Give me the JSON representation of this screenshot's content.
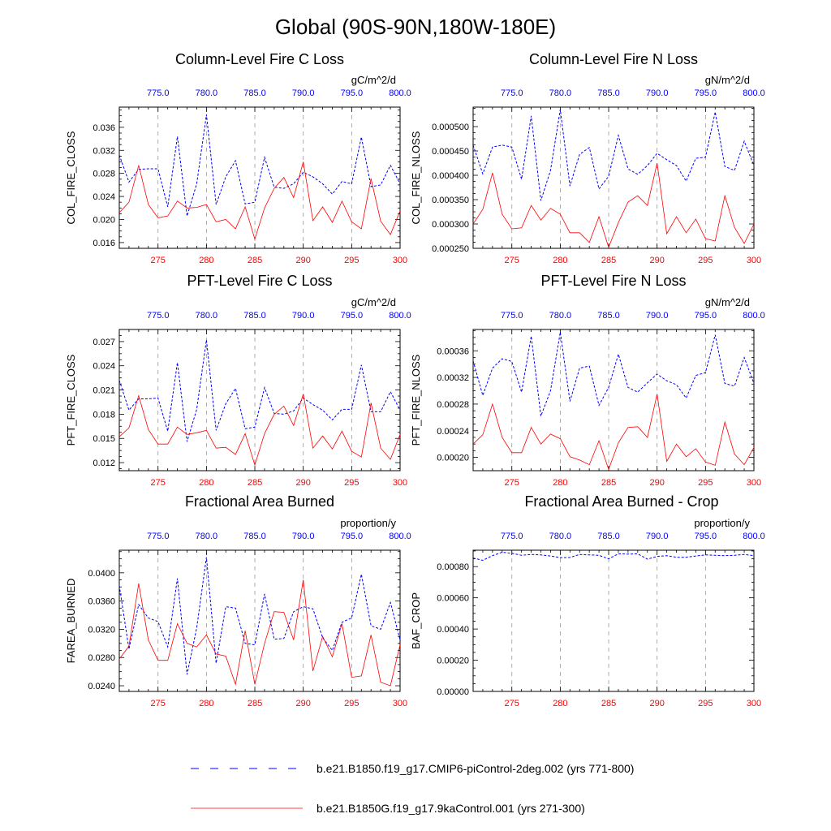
{
  "figure_title": "Global (90S-90N,180W-180E)",
  "colors": {
    "ctrl": "#0000ff",
    "case": "#ff0000",
    "frame": "#000000",
    "grid": "#999999"
  },
  "legend": {
    "ctrl_label": "b.e21.B1850.f19_g17.CMIP6-piControl-2deg.002 (yrs 771-800)",
    "case_label": "b.e21.B1850G.f19_g17.9kaControl.001 (yrs 271-300)"
  },
  "chart_data": [
    {
      "type": "line",
      "title": "Column-Level Fire C Loss",
      "units": "gC/m^2/d",
      "ylabel": "COL_FIRE_CLOSS",
      "ylim": [
        0.015,
        0.0395
      ],
      "yticks": [
        0.016,
        0.02,
        0.024,
        0.028,
        0.032,
        0.036
      ],
      "ytick_labels": [
        "0.016",
        "0.020",
        "0.024",
        "0.028",
        "0.032",
        "0.036"
      ],
      "x_bottom_ticks": [
        "275",
        "280",
        "285",
        "290",
        "295",
        "300"
      ],
      "x_top_ticks": [
        "775.0",
        "780.0",
        "785.0",
        "790.0",
        "795.0",
        "800.0"
      ],
      "series": [
        {
          "name": "b.e21.B1850.f19_g17.CMIP6-piControl-2deg.002 (yrs 771-800)",
          "x": [
            771,
            772,
            773,
            774,
            775,
            776,
            777,
            778,
            779,
            780,
            781,
            782,
            783,
            784,
            785,
            786,
            787,
            788,
            789,
            790,
            791,
            792,
            793,
            794,
            795,
            796,
            797,
            798,
            799,
            800
          ],
          "values": [
            0.0312,
            0.0265,
            0.0287,
            0.0288,
            0.0288,
            0.0222,
            0.0344,
            0.0206,
            0.0262,
            0.0382,
            0.0226,
            0.0274,
            0.0302,
            0.0227,
            0.023,
            0.0308,
            0.0256,
            0.0254,
            0.0262,
            0.0282,
            0.0274,
            0.0262,
            0.0244,
            0.0266,
            0.0262,
            0.0343,
            0.0257,
            0.026,
            0.0294,
            0.0262
          ]
        },
        {
          "name": "b.e21.B1850G.f19_g17.9kaControl.001 (yrs 271-300)",
          "x": [
            271,
            272,
            273,
            274,
            275,
            276,
            277,
            278,
            279,
            280,
            281,
            282,
            283,
            284,
            285,
            286,
            287,
            288,
            289,
            290,
            291,
            292,
            293,
            294,
            295,
            296,
            297,
            298,
            299,
            300
          ],
          "values": [
            0.0212,
            0.023,
            0.0294,
            0.0226,
            0.0203,
            0.0206,
            0.0232,
            0.022,
            0.0221,
            0.0226,
            0.0196,
            0.02,
            0.0184,
            0.0222,
            0.0166,
            0.022,
            0.0254,
            0.0273,
            0.0238,
            0.03,
            0.0198,
            0.0222,
            0.0195,
            0.0232,
            0.0196,
            0.0184,
            0.0271,
            0.0197,
            0.0174,
            0.0215
          ]
        }
      ]
    },
    {
      "type": "line",
      "title": "Column-Level Fire N Loss",
      "units": "gN/m^2/d",
      "ylabel": "COL_FIRE_NLOSS",
      "ylim": [
        0.00025,
        0.00054
      ],
      "yticks": [
        0.00025,
        0.0003,
        0.00035,
        0.0004,
        0.00045,
        0.0005
      ],
      "ytick_labels": [
        "0.000250",
        "0.000300",
        "0.000350",
        "0.000400",
        "0.000450",
        "0.000500"
      ],
      "x_bottom_ticks": [
        "275",
        "280",
        "285",
        "290",
        "295",
        "300"
      ],
      "x_top_ticks": [
        "775.0",
        "780.0",
        "785.0",
        "790.0",
        "795.0",
        "800.0"
      ],
      "series": [
        {
          "name": "b.e21.B1850.f19_g17.CMIP6-piControl-2deg.002 (yrs 771-800)",
          "x": [
            771,
            772,
            773,
            774,
            775,
            776,
            777,
            778,
            779,
            780,
            781,
            782,
            783,
            784,
            785,
            786,
            787,
            788,
            789,
            790,
            791,
            792,
            793,
            794,
            795,
            796,
            797,
            798,
            799,
            800
          ],
          "values": [
            0.000462,
            0.000403,
            0.000458,
            0.000462,
            0.000458,
            0.000392,
            0.000522,
            0.000348,
            0.00041,
            0.000535,
            0.000378,
            0.000443,
            0.000457,
            0.000372,
            0.000398,
            0.000482,
            0.000413,
            0.000402,
            0.00042,
            0.000445,
            0.000432,
            0.00042,
            0.000388,
            0.000435,
            0.000437,
            0.00053,
            0.000418,
            0.00041,
            0.00047,
            0.00042
          ]
        },
        {
          "name": "b.e21.B1850G.f19_g17.9kaControl.001 (yrs 271-300)",
          "x": [
            271,
            272,
            273,
            274,
            275,
            276,
            277,
            278,
            279,
            280,
            281,
            282,
            283,
            284,
            285,
            286,
            287,
            288,
            289,
            290,
            291,
            292,
            293,
            294,
            295,
            296,
            297,
            298,
            299,
            300
          ],
          "values": [
            0.0003,
            0.00033,
            0.000405,
            0.00032,
            0.00029,
            0.000292,
            0.000338,
            0.000308,
            0.000332,
            0.00032,
            0.000282,
            0.000282,
            0.000262,
            0.000315,
            0.000252,
            0.000303,
            0.000345,
            0.000358,
            0.000338,
            0.000425,
            0.00028,
            0.000315,
            0.000282,
            0.00031,
            0.00027,
            0.000265,
            0.000358,
            0.000293,
            0.00026,
            0.0003
          ]
        }
      ]
    },
    {
      "type": "line",
      "title": "PFT-Level Fire C Loss",
      "units": "gC/m^2/d",
      "ylabel": "PFT_FIRE_CLOSS",
      "ylim": [
        0.011,
        0.0285
      ],
      "yticks": [
        0.012,
        0.015,
        0.018,
        0.021,
        0.024,
        0.027
      ],
      "ytick_labels": [
        "0.012",
        "0.015",
        "0.018",
        "0.021",
        "0.024",
        "0.027"
      ],
      "x_bottom_ticks": [
        "275",
        "280",
        "285",
        "290",
        "295",
        "300"
      ],
      "x_top_ticks": [
        "775.0",
        "780.0",
        "785.0",
        "790.0",
        "795.0",
        "800.0"
      ],
      "series": [
        {
          "name": "b.e21.B1850.f19_g17.CMIP6-piControl-2deg.002 (yrs 771-800)",
          "x": [
            771,
            772,
            773,
            774,
            775,
            776,
            777,
            778,
            779,
            780,
            781,
            782,
            783,
            784,
            785,
            786,
            787,
            788,
            789,
            790,
            791,
            792,
            793,
            794,
            795,
            796,
            797,
            798,
            799,
            800
          ],
          "values": [
            0.0222,
            0.0185,
            0.0199,
            0.0199,
            0.02,
            0.0159,
            0.0244,
            0.0146,
            0.0186,
            0.0272,
            0.016,
            0.0193,
            0.0212,
            0.0162,
            0.0164,
            0.0213,
            0.0181,
            0.018,
            0.0184,
            0.02,
            0.0192,
            0.0185,
            0.0173,
            0.0186,
            0.0186,
            0.0241,
            0.0183,
            0.0183,
            0.0208,
            0.0185
          ]
        },
        {
          "name": "b.e21.B1850G.f19_g17.9kaControl.001 (yrs 271-300)",
          "x": [
            271,
            272,
            273,
            274,
            275,
            276,
            277,
            278,
            279,
            280,
            281,
            282,
            283,
            284,
            285,
            286,
            287,
            288,
            289,
            290,
            291,
            292,
            293,
            294,
            295,
            296,
            297,
            298,
            299,
            300
          ],
          "values": [
            0.0152,
            0.0163,
            0.0203,
            0.0161,
            0.0143,
            0.0143,
            0.0164,
            0.0155,
            0.0157,
            0.016,
            0.0138,
            0.0139,
            0.013,
            0.0156,
            0.0117,
            0.0156,
            0.018,
            0.019,
            0.0166,
            0.0205,
            0.0138,
            0.0153,
            0.0137,
            0.0159,
            0.0134,
            0.0127,
            0.0194,
            0.0138,
            0.0124,
            0.0155
          ]
        }
      ]
    },
    {
      "type": "line",
      "title": "PFT-Level Fire N Loss",
      "units": "gN/m^2/d",
      "ylabel": "PFT_FIRE_NLOSS",
      "ylim": [
        0.00018,
        0.000392
      ],
      "yticks": [
        0.0002,
        0.00024,
        0.00028,
        0.00032,
        0.00036
      ],
      "ytick_labels": [
        "0.00020",
        "0.00024",
        "0.00028",
        "0.00032",
        "0.00036"
      ],
      "x_bottom_ticks": [
        "275",
        "280",
        "285",
        "290",
        "295",
        "300"
      ],
      "x_top_ticks": [
        "775.0",
        "780.0",
        "785.0",
        "790.0",
        "795.0",
        "800.0"
      ],
      "series": [
        {
          "name": "b.e21.B1850.f19_g17.CMIP6-piControl-2deg.002 (yrs 771-800)",
          "x": [
            771,
            772,
            773,
            774,
            775,
            776,
            777,
            778,
            779,
            780,
            781,
            782,
            783,
            784,
            785,
            786,
            787,
            788,
            789,
            790,
            791,
            792,
            793,
            794,
            795,
            796,
            797,
            798,
            799,
            800
          ],
          "values": [
            0.000345,
            0.000293,
            0.000334,
            0.000348,
            0.000344,
            0.000298,
            0.000382,
            0.000262,
            0.0003,
            0.000388,
            0.000284,
            0.000334,
            0.000337,
            0.000278,
            0.000305,
            0.000355,
            0.000305,
            0.000298,
            0.000312,
            0.000325,
            0.000315,
            0.000309,
            0.000289,
            0.000323,
            0.000327,
            0.000384,
            0.000311,
            0.000307,
            0.00035,
            0.000311
          ]
        },
        {
          "name": "b.e21.B1850G.f19_g17.9kaControl.001 (yrs 271-300)",
          "x": [
            271,
            272,
            273,
            274,
            275,
            276,
            277,
            278,
            279,
            280,
            281,
            282,
            283,
            284,
            285,
            286,
            287,
            288,
            289,
            290,
            291,
            292,
            293,
            294,
            295,
            296,
            297,
            298,
            299,
            300
          ],
          "values": [
            0.00022,
            0.000234,
            0.00028,
            0.00023,
            0.000207,
            0.000207,
            0.000245,
            0.00022,
            0.000235,
            0.000228,
            0.000201,
            0.000196,
            0.000189,
            0.000225,
            0.000182,
            0.000222,
            0.000245,
            0.000246,
            0.00023,
            0.000295,
            0.000194,
            0.00022,
            0.000201,
            0.000213,
            0.000193,
            0.000188,
            0.000253,
            0.000205,
            0.000189,
            0.000215
          ]
        }
      ]
    },
    {
      "type": "line",
      "title": "Fractional Area Burned",
      "units": "proportion/y",
      "ylabel": "FAREA_BURNED",
      "ylim": [
        0.0232,
        0.0432
      ],
      "yticks": [
        0.024,
        0.028,
        0.032,
        0.036,
        0.04
      ],
      "ytick_labels": [
        "0.0240",
        "0.0280",
        "0.0320",
        "0.0360",
        "0.0400"
      ],
      "x_bottom_ticks": [
        "275",
        "280",
        "285",
        "290",
        "295",
        "300"
      ],
      "x_top_ticks": [
        "775.0",
        "780.0",
        "785.0",
        "790.0",
        "795.0",
        "800.0"
      ],
      "series": [
        {
          "name": "b.e21.B1850.f19_g17.CMIP6-piControl-2deg.002 (yrs 771-800)",
          "x": [
            771,
            772,
            773,
            774,
            775,
            776,
            777,
            778,
            779,
            780,
            781,
            782,
            783,
            784,
            785,
            786,
            787,
            788,
            789,
            790,
            791,
            792,
            793,
            794,
            795,
            796,
            797,
            798,
            799,
            800
          ],
          "values": [
            0.0382,
            0.0292,
            0.0355,
            0.0336,
            0.0331,
            0.0295,
            0.0392,
            0.0256,
            0.0322,
            0.0422,
            0.0272,
            0.0352,
            0.035,
            0.03,
            0.0298,
            0.037,
            0.0306,
            0.0307,
            0.0345,
            0.0352,
            0.0349,
            0.0308,
            0.029,
            0.033,
            0.0336,
            0.0398,
            0.0325,
            0.032,
            0.0358,
            0.0305
          ]
        },
        {
          "name": "b.e21.B1850G.f19_g17.9kaControl.001 (yrs 271-300)",
          "x": [
            271,
            272,
            273,
            274,
            275,
            276,
            277,
            278,
            279,
            280,
            281,
            282,
            283,
            284,
            285,
            286,
            287,
            288,
            289,
            290,
            291,
            292,
            293,
            294,
            295,
            296,
            297,
            298,
            299,
            300
          ],
          "values": [
            0.0278,
            0.0296,
            0.0385,
            0.0305,
            0.0276,
            0.0276,
            0.0328,
            0.03,
            0.0295,
            0.0312,
            0.0285,
            0.0282,
            0.0242,
            0.0318,
            0.0242,
            0.03,
            0.0345,
            0.0344,
            0.0305,
            0.039,
            0.0261,
            0.031,
            0.0281,
            0.0328,
            0.0252,
            0.0254,
            0.0312,
            0.0245,
            0.024,
            0.0298
          ]
        }
      ]
    },
    {
      "type": "line",
      "title": "Fractional Area Burned - Crop",
      "units": "proportion/y",
      "ylabel": "BAF_CROP",
      "ylim": [
        0.0,
        0.000905
      ],
      "yticks": [
        0.0,
        0.0002,
        0.0004,
        0.0006,
        0.0008
      ],
      "ytick_labels": [
        "0.00000",
        "0.00020",
        "0.00040",
        "0.00060",
        "0.00080"
      ],
      "x_bottom_ticks": [
        "275",
        "280",
        "285",
        "290",
        "295",
        "300"
      ],
      "x_top_ticks": [
        "775.0",
        "780.0",
        "785.0",
        "790.0",
        "795.0",
        "800.0"
      ],
      "series": [
        {
          "name": "b.e21.B1850.f19_g17.CMIP6-piControl-2deg.002 (yrs 771-800)",
          "x": [
            771,
            772,
            773,
            774,
            775,
            776,
            777,
            778,
            779,
            780,
            781,
            782,
            783,
            784,
            785,
            786,
            787,
            788,
            789,
            790,
            791,
            792,
            793,
            794,
            795,
            796,
            797,
            798,
            799,
            800
          ],
          "values": [
            0.000855,
            0.00084,
            0.00087,
            0.000892,
            0.000885,
            0.000872,
            0.000878,
            0.000875,
            0.000868,
            0.000857,
            0.000858,
            0.000878,
            0.000875,
            0.000872,
            0.00085,
            0.000882,
            0.00088,
            0.000882,
            0.000848,
            0.000865,
            0.00087,
            0.00086,
            0.00086,
            0.000868,
            0.000875,
            0.000872,
            0.00087,
            0.000872,
            0.000878,
            0.00087
          ]
        },
        {
          "name": "b.e21.B1850G.f19_g17.9kaControl.001 (yrs 271-300)",
          "x": [],
          "values": []
        }
      ]
    }
  ]
}
